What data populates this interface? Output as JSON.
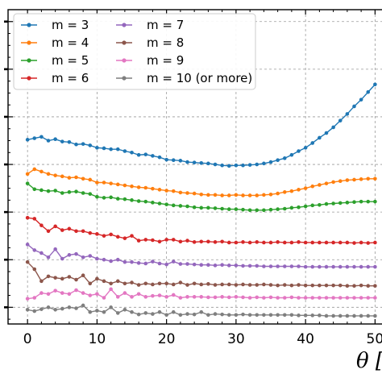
{
  "chart_data": {
    "type": "line",
    "xlabel": "θ [",
    "ylabel": "",
    "xlim": [
      -2.8,
      51
    ],
    "ylim": [
      0.65,
      7.25
    ],
    "x_ticks": [
      0,
      10,
      20,
      30,
      40,
      50
    ],
    "x_tick_labels": [
      "0",
      "10",
      "20",
      "30",
      "40",
      "50"
    ],
    "y_ticks": [
      1,
      2,
      3,
      4,
      5,
      6,
      7
    ],
    "grid": true,
    "legend_position": "top-left",
    "x": [
      0,
      1,
      2,
      3,
      4,
      5,
      6,
      7,
      8,
      9,
      10,
      11,
      12,
      13,
      14,
      15,
      16,
      17,
      18,
      19,
      20,
      21,
      22,
      23,
      24,
      25,
      26,
      27,
      28,
      29,
      30,
      31,
      32,
      33,
      34,
      35,
      36,
      37,
      38,
      39,
      40,
      41,
      42,
      43,
      44,
      45,
      46,
      47,
      48,
      49,
      50
    ],
    "series": [
      {
        "name": "m = 3",
        "color": "#1f77b4",
        "values": [
          4.52,
          4.55,
          4.58,
          4.5,
          4.53,
          4.48,
          4.47,
          4.42,
          4.43,
          4.4,
          4.35,
          4.34,
          4.32,
          4.32,
          4.28,
          4.25,
          4.2,
          4.21,
          4.18,
          4.15,
          4.1,
          4.09,
          4.08,
          4.05,
          4.04,
          4.03,
          4.02,
          4.0,
          3.98,
          3.97,
          3.98,
          3.98,
          3.99,
          4.0,
          4.02,
          4.05,
          4.09,
          4.13,
          4.2,
          4.28,
          4.35,
          4.45,
          4.56,
          4.66,
          4.78,
          4.92,
          5.06,
          5.22,
          5.36,
          5.52,
          5.68
        ]
      },
      {
        "name": "m = 4",
        "color": "#ff7f0e",
        "values": [
          3.8,
          3.9,
          3.85,
          3.8,
          3.77,
          3.75,
          3.72,
          3.73,
          3.7,
          3.68,
          3.62,
          3.62,
          3.6,
          3.58,
          3.56,
          3.54,
          3.52,
          3.51,
          3.49,
          3.47,
          3.45,
          3.44,
          3.41,
          3.4,
          3.39,
          3.37,
          3.36,
          3.36,
          3.35,
          3.35,
          3.36,
          3.35,
          3.35,
          3.35,
          3.36,
          3.37,
          3.39,
          3.42,
          3.44,
          3.47,
          3.5,
          3.54,
          3.57,
          3.6,
          3.63,
          3.65,
          3.67,
          3.68,
          3.69,
          3.7,
          3.7
        ]
      },
      {
        "name": "m = 5",
        "color": "#2ca02c",
        "values": [
          3.6,
          3.48,
          3.46,
          3.44,
          3.45,
          3.4,
          3.42,
          3.43,
          3.4,
          3.38,
          3.32,
          3.3,
          3.31,
          3.28,
          3.27,
          3.25,
          3.23,
          3.22,
          3.2,
          3.18,
          3.16,
          3.14,
          3.13,
          3.12,
          3.1,
          3.09,
          3.09,
          3.08,
          3.07,
          3.06,
          3.06,
          3.05,
          3.04,
          3.04,
          3.04,
          3.05,
          3.06,
          3.07,
          3.09,
          3.1,
          3.12,
          3.14,
          3.15,
          3.17,
          3.18,
          3.19,
          3.2,
          3.21,
          3.22,
          3.22,
          3.22
        ]
      },
      {
        "name": "m = 6",
        "color": "#d62728",
        "values": [
          2.88,
          2.86,
          2.72,
          2.6,
          2.7,
          2.62,
          2.65,
          2.6,
          2.6,
          2.56,
          2.54,
          2.5,
          2.53,
          2.48,
          2.45,
          2.5,
          2.4,
          2.42,
          2.41,
          2.38,
          2.42,
          2.42,
          2.38,
          2.4,
          2.37,
          2.38,
          2.38,
          2.37,
          2.38,
          2.36,
          2.36,
          2.37,
          2.36,
          2.37,
          2.36,
          2.36,
          2.37,
          2.36,
          2.36,
          2.37,
          2.36,
          2.36,
          2.36,
          2.36,
          2.36,
          2.36,
          2.36,
          2.35,
          2.36,
          2.35,
          2.36
        ]
      },
      {
        "name": "m = 7",
        "color": "#9467bd",
        "values": [
          2.32,
          2.2,
          2.14,
          2.05,
          2.22,
          2.02,
          2.1,
          2.12,
          2.05,
          2.08,
          2.02,
          2.0,
          1.97,
          2.0,
          1.95,
          1.95,
          1.93,
          1.92,
          1.96,
          1.92,
          1.9,
          1.96,
          1.91,
          1.91,
          1.9,
          1.89,
          1.89,
          1.88,
          1.89,
          1.88,
          1.88,
          1.87,
          1.87,
          1.87,
          1.86,
          1.86,
          1.86,
          1.86,
          1.86,
          1.86,
          1.85,
          1.85,
          1.85,
          1.85,
          1.85,
          1.85,
          1.85,
          1.85,
          1.85,
          1.85,
          1.85
        ]
      },
      {
        "name": "m = 8",
        "color": "#8c564b",
        "values": [
          1.95,
          1.8,
          1.55,
          1.65,
          1.62,
          1.6,
          1.64,
          1.58,
          1.67,
          1.5,
          1.6,
          1.55,
          1.5,
          1.55,
          1.5,
          1.52,
          1.47,
          1.5,
          1.48,
          1.5,
          1.5,
          1.48,
          1.52,
          1.47,
          1.5,
          1.48,
          1.49,
          1.47,
          1.48,
          1.48,
          1.47,
          1.48,
          1.47,
          1.47,
          1.48,
          1.47,
          1.46,
          1.47,
          1.46,
          1.47,
          1.46,
          1.46,
          1.46,
          1.46,
          1.46,
          1.46,
          1.45,
          1.45,
          1.46,
          1.45,
          1.45
        ]
      },
      {
        "name": "m = 9",
        "color": "#e377c2",
        "values": [
          1.18,
          1.2,
          1.3,
          1.28,
          1.35,
          1.3,
          1.28,
          1.36,
          1.3,
          1.25,
          1.28,
          1.2,
          1.38,
          1.22,
          1.3,
          1.22,
          1.28,
          1.22,
          1.24,
          1.25,
          1.22,
          1.26,
          1.2,
          1.22,
          1.22,
          1.22,
          1.21,
          1.21,
          1.22,
          1.21,
          1.22,
          1.21,
          1.2,
          1.21,
          1.2,
          1.21,
          1.2,
          1.2,
          1.21,
          1.2,
          1.2,
          1.2,
          1.2,
          1.2,
          1.2,
          1.2,
          1.2,
          1.2,
          1.2,
          1.2,
          1.2
        ]
      },
      {
        "name": "m = 10 (or more)",
        "color": "#7f7f7f",
        "values": [
          0.95,
          0.92,
          0.96,
          1.0,
          0.95,
          0.97,
          1.0,
          0.98,
          1.04,
          0.9,
          0.93,
          0.9,
          1.0,
          0.88,
          0.95,
          0.9,
          0.85,
          0.88,
          0.86,
          0.9,
          0.84,
          0.9,
          0.84,
          0.86,
          0.85,
          0.9,
          0.84,
          0.86,
          0.85,
          0.84,
          0.84,
          0.85,
          0.84,
          0.84,
          0.84,
          0.84,
          0.84,
          0.84,
          0.84,
          0.83,
          0.83,
          0.83,
          0.83,
          0.82,
          0.82,
          0.82,
          0.82,
          0.82,
          0.82,
          0.82,
          0.82
        ]
      }
    ]
  }
}
